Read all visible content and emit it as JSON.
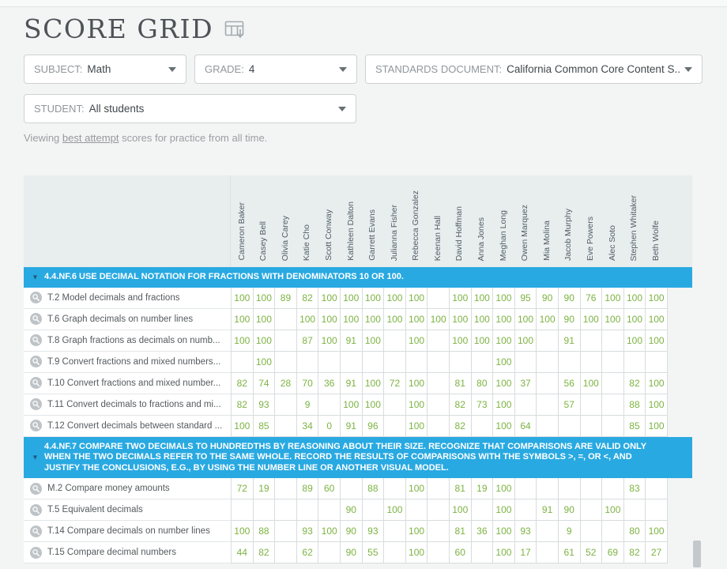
{
  "header": {
    "title": "SCORE GRID"
  },
  "filters": {
    "subject": {
      "label": "SUBJECT:",
      "value": "Math"
    },
    "grade": {
      "label": "GRADE:",
      "value": "4"
    },
    "standards": {
      "label": "STANDARDS DOCUMENT:",
      "value": "California Common Core Content S..."
    },
    "student": {
      "label": "STUDENT:",
      "value": "All students"
    }
  },
  "viewing_note": {
    "prefix": "Viewing ",
    "link_text": "best attempt",
    "suffix": " scores for practice from all time."
  },
  "icons": {
    "collapse_caret": "▼"
  },
  "colors": {
    "accent_blue": "#29a9e1",
    "score_green": "#7cb342"
  },
  "grid": {
    "students": [
      "Cameron Baker",
      "Casey Bell",
      "Olivia Carey",
      "Katie Cho",
      "Scott Conway",
      "Kathleen Dalton",
      "Garrett Evans",
      "Julianna Fisher",
      "Rebecca Gonzalez",
      "Keenan Hall",
      "David Hoffman",
      "Anna Jones",
      "Meghan Long",
      "Owen Marquez",
      "Mia Molina",
      "Jacob Murphy",
      "Eve Powers",
      "Alec Soto",
      "Stephen Whitaker",
      "Beth Wolfe"
    ],
    "sections": [
      {
        "standard": "4.4.NF.6 USE DECIMAL NOTATION FOR FRACTIONS WITH DENOMINATORS 10 OR 100.",
        "skills": [
          {
            "name": "T.2 Model decimals and fractions",
            "scores": [
              "100",
              "100",
              "89",
              "82",
              "100",
              "100",
              "100",
              "100",
              "100",
              "",
              "100",
              "100",
              "100",
              "95",
              "90",
              "90",
              "76",
              "100",
              "100",
              "100"
            ]
          },
          {
            "name": "T.6 Graph decimals on number lines",
            "scores": [
              "100",
              "100",
              "",
              "100",
              "100",
              "100",
              "100",
              "100",
              "100",
              "100",
              "100",
              "100",
              "100",
              "100",
              "100",
              "90",
              "100",
              "100",
              "100",
              "100"
            ]
          },
          {
            "name": "T.8 Graph fractions as decimals on numb...",
            "scores": [
              "100",
              "100",
              "",
              "87",
              "100",
              "91",
              "100",
              "",
              "100",
              "",
              "100",
              "100",
              "100",
              "100",
              "",
              "91",
              "",
              "",
              "100",
              "100"
            ]
          },
          {
            "name": "T.9 Convert fractions and mixed numbers...",
            "scores": [
              "",
              "100",
              "",
              "",
              "",
              "",
              "",
              "",
              "",
              "",
              "",
              "",
              "100",
              "",
              "",
              "",
              "",
              "",
              "",
              ""
            ]
          },
          {
            "name": "T.10 Convert fractions and mixed number...",
            "scores": [
              "82",
              "74",
              "28",
              "70",
              "36",
              "91",
              "100",
              "72",
              "100",
              "",
              "81",
              "80",
              "100",
              "37",
              "",
              "56",
              "100",
              "",
              "82",
              "100"
            ]
          },
          {
            "name": "T.11 Convert decimals to fractions and mi...",
            "scores": [
              "82",
              "93",
              "",
              "9",
              "",
              "100",
              "100",
              "",
              "100",
              "",
              "82",
              "73",
              "100",
              "",
              "",
              "57",
              "",
              "",
              "88",
              "100"
            ]
          },
          {
            "name": "T.12 Convert decimals between standard ...",
            "scores": [
              "100",
              "85",
              "",
              "34",
              "0",
              "91",
              "96",
              "",
              "100",
              "",
              "82",
              "",
              "100",
              "64",
              "",
              "",
              "",
              "",
              "85",
              "100"
            ]
          }
        ]
      },
      {
        "standard": "4.4.NF.7 COMPARE TWO DECIMALS TO HUNDREDTHS BY REASONING ABOUT THEIR SIZE. RECOGNIZE THAT COMPARISONS ARE VALID ONLY WHEN THE TWO DECIMALS REFER TO THE SAME WHOLE. RECORD THE RESULTS OF COMPARISONS WITH THE SYMBOLS >, =, OR <, AND JUSTIFY THE CONCLUSIONS, E.G., BY USING THE NUMBER LINE OR ANOTHER VISUAL MODEL.",
        "skills": [
          {
            "name": "M.2 Compare money amounts",
            "scores": [
              "72",
              "19",
              "",
              "89",
              "60",
              "",
              "88",
              "",
              "100",
              "",
              "81",
              "19",
              "100",
              "",
              "",
              "",
              "",
              "",
              "83",
              ""
            ]
          },
          {
            "name": "T.5 Equivalent decimals",
            "scores": [
              "",
              "",
              "",
              "",
              "",
              "90",
              "",
              "100",
              "",
              "",
              "100",
              "",
              "100",
              "",
              "91",
              "90",
              "",
              "100",
              "",
              ""
            ]
          },
          {
            "name": "T.14 Compare decimals on number lines",
            "scores": [
              "100",
              "88",
              "",
              "93",
              "100",
              "90",
              "93",
              "",
              "100",
              "",
              "81",
              "36",
              "100",
              "93",
              "",
              "9",
              "",
              "",
              "80",
              "100"
            ]
          },
          {
            "name": "T.15 Compare decimal numbers",
            "scores": [
              "44",
              "82",
              "",
              "62",
              "",
              "90",
              "55",
              "",
              "100",
              "",
              "60",
              "",
              "100",
              "17",
              "",
              "61",
              "52",
              "69",
              "82",
              "27"
            ]
          }
        ]
      }
    ]
  }
}
